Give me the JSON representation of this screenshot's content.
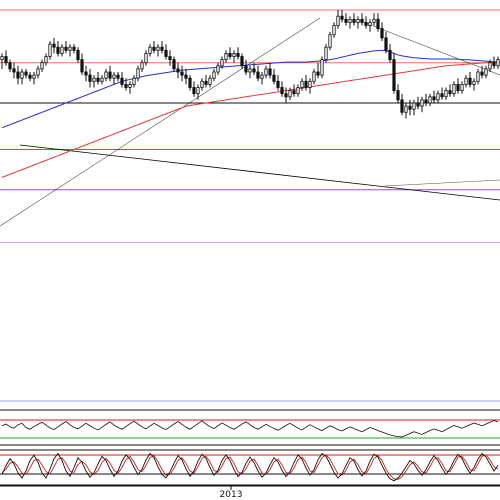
{
  "chart_data": {
    "type": "candlestick",
    "x_axis": {
      "tick_labels": [
        "2013"
      ]
    },
    "colors": {
      "background": "#ffffff",
      "candle_up_body": "#ffffff",
      "candle_down_body": "#111111",
      "candle_wick": "#111111",
      "ma_fast": "#2b2bd6",
      "ma_slow": "#e23b3b",
      "trendline": "#000000",
      "level_pink": "#ff6b6b",
      "level_black": "#111111",
      "level_green": "#2aa02a",
      "level_purple": "#a14ad1",
      "level_violet": "#d8a8e8",
      "level_blue": "#9aa3ff",
      "stoch_k": "#111111",
      "stoch_d": "#d11c1c"
    },
    "horizontal_levels": [
      {
        "name": "top-level",
        "y": 1.0,
        "color_key": "level_pink"
      },
      {
        "name": "mid-level",
        "y": 0.83,
        "color_key": "level_pink"
      },
      {
        "name": "support-level",
        "y": 0.7,
        "color_key": "level_black"
      },
      {
        "name": "green-level",
        "y": 0.55,
        "color_key": "level_green"
      },
      {
        "name": "purple-level",
        "y": 0.42,
        "color_key": "level_purple"
      },
      {
        "name": "violet-level",
        "y": 0.25,
        "color_key": "level_violet"
      }
    ],
    "ohlc": [
      [
        0.84,
        0.86,
        0.81,
        0.85
      ],
      [
        0.85,
        0.87,
        0.82,
        0.83
      ],
      [
        0.83,
        0.84,
        0.8,
        0.81
      ],
      [
        0.81,
        0.83,
        0.78,
        0.8
      ],
      [
        0.8,
        0.82,
        0.76,
        0.78
      ],
      [
        0.78,
        0.81,
        0.76,
        0.8
      ],
      [
        0.8,
        0.81,
        0.78,
        0.79
      ],
      [
        0.79,
        0.8,
        0.77,
        0.78
      ],
      [
        0.78,
        0.8,
        0.76,
        0.79
      ],
      [
        0.79,
        0.82,
        0.78,
        0.81
      ],
      [
        0.81,
        0.84,
        0.8,
        0.83
      ],
      [
        0.83,
        0.86,
        0.82,
        0.85
      ],
      [
        0.85,
        0.9,
        0.84,
        0.89
      ],
      [
        0.89,
        0.91,
        0.86,
        0.88
      ],
      [
        0.88,
        0.9,
        0.85,
        0.86
      ],
      [
        0.86,
        0.89,
        0.85,
        0.88
      ],
      [
        0.88,
        0.9,
        0.86,
        0.87
      ],
      [
        0.87,
        0.89,
        0.85,
        0.88
      ],
      [
        0.88,
        0.89,
        0.86,
        0.87
      ],
      [
        0.87,
        0.88,
        0.83,
        0.84
      ],
      [
        0.84,
        0.86,
        0.79,
        0.8
      ],
      [
        0.8,
        0.82,
        0.77,
        0.79
      ],
      [
        0.79,
        0.81,
        0.75,
        0.77
      ],
      [
        0.77,
        0.79,
        0.75,
        0.78
      ],
      [
        0.78,
        0.8,
        0.76,
        0.77
      ],
      [
        0.77,
        0.79,
        0.76,
        0.78
      ],
      [
        0.78,
        0.81,
        0.77,
        0.8
      ],
      [
        0.8,
        0.82,
        0.77,
        0.78
      ],
      [
        0.78,
        0.8,
        0.76,
        0.79
      ],
      [
        0.79,
        0.8,
        0.77,
        0.78
      ],
      [
        0.78,
        0.8,
        0.75,
        0.76
      ],
      [
        0.76,
        0.78,
        0.74,
        0.75
      ],
      [
        0.75,
        0.77,
        0.73,
        0.76
      ],
      [
        0.76,
        0.79,
        0.75,
        0.78
      ],
      [
        0.78,
        0.82,
        0.77,
        0.81
      ],
      [
        0.81,
        0.84,
        0.8,
        0.83
      ],
      [
        0.83,
        0.87,
        0.82,
        0.86
      ],
      [
        0.86,
        0.89,
        0.85,
        0.88
      ],
      [
        0.88,
        0.9,
        0.86,
        0.87
      ],
      [
        0.87,
        0.89,
        0.85,
        0.88
      ],
      [
        0.88,
        0.9,
        0.86,
        0.87
      ],
      [
        0.87,
        0.89,
        0.84,
        0.85
      ],
      [
        0.85,
        0.87,
        0.82,
        0.84
      ],
      [
        0.84,
        0.85,
        0.8,
        0.81
      ],
      [
        0.81,
        0.83,
        0.78,
        0.8
      ],
      [
        0.8,
        0.82,
        0.77,
        0.79
      ],
      [
        0.79,
        0.81,
        0.76,
        0.78
      ],
      [
        0.78,
        0.79,
        0.74,
        0.75
      ],
      [
        0.75,
        0.77,
        0.72,
        0.73
      ],
      [
        0.73,
        0.76,
        0.71,
        0.75
      ],
      [
        0.75,
        0.78,
        0.74,
        0.77
      ],
      [
        0.77,
        0.79,
        0.75,
        0.76
      ],
      [
        0.76,
        0.79,
        0.75,
        0.78
      ],
      [
        0.78,
        0.81,
        0.77,
        0.8
      ],
      [
        0.8,
        0.83,
        0.79,
        0.82
      ],
      [
        0.82,
        0.85,
        0.81,
        0.84
      ],
      [
        0.84,
        0.87,
        0.83,
        0.86
      ],
      [
        0.86,
        0.88,
        0.84,
        0.85
      ],
      [
        0.85,
        0.87,
        0.83,
        0.86
      ],
      [
        0.86,
        0.88,
        0.84,
        0.85
      ],
      [
        0.85,
        0.86,
        0.81,
        0.82
      ],
      [
        0.82,
        0.84,
        0.79,
        0.8
      ],
      [
        0.8,
        0.82,
        0.78,
        0.81
      ],
      [
        0.81,
        0.83,
        0.79,
        0.8
      ],
      [
        0.8,
        0.82,
        0.77,
        0.78
      ],
      [
        0.78,
        0.8,
        0.76,
        0.79
      ],
      [
        0.79,
        0.82,
        0.78,
        0.81
      ],
      [
        0.81,
        0.83,
        0.78,
        0.79
      ],
      [
        0.79,
        0.81,
        0.76,
        0.77
      ],
      [
        0.77,
        0.79,
        0.74,
        0.75
      ],
      [
        0.75,
        0.77,
        0.72,
        0.73
      ],
      [
        0.73,
        0.75,
        0.7,
        0.72
      ],
      [
        0.72,
        0.75,
        0.71,
        0.74
      ],
      [
        0.74,
        0.76,
        0.72,
        0.73
      ],
      [
        0.73,
        0.76,
        0.72,
        0.75
      ],
      [
        0.75,
        0.78,
        0.74,
        0.77
      ],
      [
        0.77,
        0.79,
        0.74,
        0.75
      ],
      [
        0.75,
        0.78,
        0.73,
        0.77
      ],
      [
        0.77,
        0.81,
        0.76,
        0.8
      ],
      [
        0.8,
        0.83,
        0.78,
        0.79
      ],
      [
        0.79,
        0.85,
        0.78,
        0.84
      ],
      [
        0.84,
        0.89,
        0.83,
        0.88
      ],
      [
        0.88,
        0.93,
        0.87,
        0.92
      ],
      [
        0.92,
        0.96,
        0.91,
        0.95
      ],
      [
        0.95,
        1.0,
        0.94,
        0.98
      ],
      [
        0.98,
        1.0,
        0.96,
        0.97
      ],
      [
        0.97,
        0.99,
        0.95,
        0.96
      ],
      [
        0.96,
        0.98,
        0.94,
        0.97
      ],
      [
        0.97,
        0.99,
        0.95,
        0.96
      ],
      [
        0.96,
        0.98,
        0.94,
        0.97
      ],
      [
        0.97,
        0.99,
        0.95,
        0.96
      ],
      [
        0.96,
        0.98,
        0.94,
        0.95
      ],
      [
        0.95,
        0.97,
        0.93,
        0.96
      ],
      [
        0.96,
        0.99,
        0.95,
        0.97
      ],
      [
        0.97,
        0.99,
        0.93,
        0.94
      ],
      [
        0.94,
        0.96,
        0.9,
        0.91
      ],
      [
        0.91,
        0.93,
        0.86,
        0.87
      ],
      [
        0.87,
        0.89,
        0.83,
        0.84
      ],
      [
        0.84,
        0.86,
        0.73,
        0.74
      ],
      [
        0.74,
        0.76,
        0.7,
        0.71
      ],
      [
        0.71,
        0.73,
        0.66,
        0.67
      ],
      [
        0.67,
        0.7,
        0.65,
        0.69
      ],
      [
        0.69,
        0.71,
        0.66,
        0.68
      ],
      [
        0.68,
        0.71,
        0.66,
        0.7
      ],
      [
        0.7,
        0.72,
        0.68,
        0.69
      ],
      [
        0.69,
        0.72,
        0.67,
        0.71
      ],
      [
        0.71,
        0.73,
        0.69,
        0.7
      ],
      [
        0.7,
        0.73,
        0.69,
        0.72
      ],
      [
        0.72,
        0.74,
        0.7,
        0.71
      ],
      [
        0.71,
        0.74,
        0.7,
        0.73
      ],
      [
        0.73,
        0.75,
        0.71,
        0.72
      ],
      [
        0.72,
        0.75,
        0.71,
        0.74
      ],
      [
        0.74,
        0.76,
        0.72,
        0.73
      ],
      [
        0.73,
        0.77,
        0.72,
        0.76
      ],
      [
        0.76,
        0.78,
        0.73,
        0.74
      ],
      [
        0.74,
        0.77,
        0.73,
        0.76
      ],
      [
        0.76,
        0.79,
        0.75,
        0.78
      ],
      [
        0.78,
        0.8,
        0.75,
        0.76
      ],
      [
        0.76,
        0.78,
        0.74,
        0.77
      ],
      [
        0.77,
        0.81,
        0.76,
        0.8
      ],
      [
        0.8,
        0.82,
        0.78,
        0.79
      ],
      [
        0.79,
        0.82,
        0.78,
        0.81
      ],
      [
        0.81,
        0.84,
        0.8,
        0.83
      ],
      [
        0.83,
        0.85,
        0.81,
        0.82
      ],
      [
        0.82,
        0.85,
        0.81,
        0.84
      ]
    ],
    "ma_fast": [
      0.62,
      0.625,
      0.63,
      0.635,
      0.64,
      0.645,
      0.65,
      0.655,
      0.66,
      0.665,
      0.67,
      0.675,
      0.68,
      0.685,
      0.69,
      0.695,
      0.7,
      0.705,
      0.71,
      0.715,
      0.72,
      0.725,
      0.73,
      0.735,
      0.74,
      0.745,
      0.75,
      0.755,
      0.76,
      0.765,
      0.77,
      0.773,
      0.776,
      0.779,
      0.782,
      0.785,
      0.788,
      0.79,
      0.792,
      0.794,
      0.796,
      0.798,
      0.8,
      0.802,
      0.804,
      0.806,
      0.807,
      0.808,
      0.809,
      0.81,
      0.811,
      0.812,
      0.813,
      0.814,
      0.815,
      0.816,
      0.817,
      0.818,
      0.819,
      0.82,
      0.821,
      0.822,
      0.823,
      0.824,
      0.825,
      0.826,
      0.827,
      0.828,
      0.829,
      0.83,
      0.831,
      0.832,
      0.832,
      0.832,
      0.832,
      0.832,
      0.832,
      0.833,
      0.834,
      0.835,
      0.836,
      0.838,
      0.84,
      0.842,
      0.845,
      0.848,
      0.851,
      0.854,
      0.857,
      0.86,
      0.862,
      0.864,
      0.866,
      0.868,
      0.869,
      0.87,
      0.868,
      0.865,
      0.86,
      0.855,
      0.852,
      0.85,
      0.848,
      0.846,
      0.845,
      0.844,
      0.843,
      0.842,
      0.842,
      0.842,
      0.842,
      0.842,
      0.842,
      0.842,
      0.841,
      0.84,
      0.84,
      0.839,
      0.838,
      0.837,
      0.836,
      0.835,
      0.834,
      0.833,
      0.832
    ],
    "ma_slow": [
      0.46,
      0.465,
      0.47,
      0.475,
      0.48,
      0.485,
      0.49,
      0.495,
      0.5,
      0.505,
      0.51,
      0.515,
      0.52,
      0.525,
      0.53,
      0.535,
      0.54,
      0.545,
      0.55,
      0.555,
      0.56,
      0.565,
      0.57,
      0.575,
      0.58,
      0.585,
      0.59,
      0.595,
      0.6,
      0.605,
      0.61,
      0.615,
      0.62,
      0.625,
      0.63,
      0.635,
      0.64,
      0.645,
      0.65,
      0.655,
      0.66,
      0.665,
      0.67,
      0.675,
      0.68,
      0.685,
      0.69,
      0.692,
      0.694,
      0.696,
      0.698,
      0.7,
      0.702,
      0.704,
      0.706,
      0.708,
      0.71,
      0.712,
      0.714,
      0.716,
      0.718,
      0.72,
      0.722,
      0.724,
      0.726,
      0.728,
      0.73,
      0.732,
      0.734,
      0.736,
      0.738,
      0.74,
      0.742,
      0.744,
      0.746,
      0.748,
      0.75,
      0.752,
      0.754,
      0.756,
      0.758,
      0.76,
      0.762,
      0.764,
      0.766,
      0.768,
      0.77,
      0.772,
      0.774,
      0.776,
      0.778,
      0.78,
      0.782,
      0.784,
      0.786,
      0.788,
      0.79,
      0.792,
      0.794,
      0.796,
      0.798,
      0.8,
      0.802,
      0.804,
      0.806,
      0.808,
      0.81,
      0.812,
      0.814,
      0.816,
      0.818,
      0.82,
      0.821,
      0.822,
      0.823,
      0.824,
      0.825,
      0.826,
      0.827,
      0.828,
      0.829,
      0.83,
      0.831,
      0.832,
      0.833
    ],
    "indicator1": [
      0.55,
      0.6,
      0.52,
      0.48,
      0.58,
      0.62,
      0.5,
      0.45,
      0.53,
      0.59,
      0.65,
      0.57,
      0.49,
      0.44,
      0.52,
      0.6,
      0.67,
      0.58,
      0.5,
      0.46,
      0.54,
      0.62,
      0.55,
      0.48,
      0.43,
      0.51,
      0.59,
      0.66,
      0.57,
      0.5,
      0.45,
      0.53,
      0.61,
      0.68,
      0.6,
      0.52,
      0.46,
      0.54,
      0.62,
      0.56,
      0.49,
      0.44,
      0.52,
      0.6,
      0.67,
      0.59,
      0.51,
      0.45,
      0.53,
      0.61,
      0.69,
      0.6,
      0.52,
      0.47,
      0.55,
      0.63,
      0.57,
      0.5,
      0.45,
      0.52,
      0.6,
      0.66,
      0.58,
      0.5,
      0.45,
      0.52,
      0.59,
      0.53,
      0.47,
      0.42,
      0.49,
      0.56,
      0.62,
      0.55,
      0.48,
      0.43,
      0.51,
      0.58,
      0.52,
      0.46,
      0.41,
      0.48,
      0.55,
      0.5,
      0.44,
      0.4,
      0.46,
      0.52,
      0.47,
      0.42,
      0.38,
      0.44,
      0.5,
      0.46,
      0.41,
      0.37,
      0.33,
      0.29,
      0.26,
      0.24,
      0.23,
      0.28,
      0.33,
      0.38,
      0.34,
      0.3,
      0.36,
      0.41,
      0.46,
      0.42,
      0.38,
      0.44,
      0.5,
      0.56,
      0.52,
      0.48,
      0.53,
      0.58,
      0.63,
      0.59,
      0.55,
      0.6,
      0.65,
      0.7,
      0.66
    ],
    "indicator2_k": [
      0.3,
      0.55,
      0.75,
      0.6,
      0.35,
      0.2,
      0.4,
      0.7,
      0.85,
      0.65,
      0.35,
      0.2,
      0.45,
      0.75,
      0.9,
      0.7,
      0.4,
      0.25,
      0.5,
      0.78,
      0.65,
      0.4,
      0.22,
      0.35,
      0.6,
      0.82,
      0.7,
      0.45,
      0.25,
      0.4,
      0.68,
      0.86,
      0.74,
      0.5,
      0.3,
      0.45,
      0.72,
      0.9,
      0.78,
      0.52,
      0.3,
      0.2,
      0.38,
      0.62,
      0.84,
      0.72,
      0.46,
      0.25,
      0.4,
      0.68,
      0.88,
      0.76,
      0.5,
      0.28,
      0.42,
      0.7,
      0.86,
      0.7,
      0.44,
      0.24,
      0.36,
      0.62,
      0.8,
      0.64,
      0.4,
      0.22,
      0.34,
      0.58,
      0.78,
      0.66,
      0.42,
      0.24,
      0.38,
      0.64,
      0.86,
      0.74,
      0.48,
      0.28,
      0.44,
      0.72,
      0.9,
      0.82,
      0.6,
      0.36,
      0.2,
      0.32,
      0.56,
      0.78,
      0.68,
      0.44,
      0.26,
      0.4,
      0.68,
      0.88,
      0.8,
      0.56,
      0.34,
      0.18,
      0.12,
      0.2,
      0.34,
      0.52,
      0.7,
      0.6,
      0.42,
      0.28,
      0.44,
      0.66,
      0.84,
      0.7,
      0.48,
      0.3,
      0.46,
      0.7,
      0.88,
      0.76,
      0.52,
      0.34,
      0.5,
      0.74,
      0.9,
      0.8,
      0.6,
      0.4,
      0.56
    ],
    "indicator2_d": [
      0.35,
      0.45,
      0.62,
      0.66,
      0.52,
      0.34,
      0.3,
      0.48,
      0.7,
      0.74,
      0.58,
      0.38,
      0.32,
      0.52,
      0.74,
      0.78,
      0.62,
      0.4,
      0.36,
      0.58,
      0.68,
      0.58,
      0.38,
      0.3,
      0.42,
      0.64,
      0.76,
      0.62,
      0.42,
      0.34,
      0.5,
      0.72,
      0.82,
      0.66,
      0.44,
      0.38,
      0.56,
      0.78,
      0.84,
      0.66,
      0.44,
      0.28,
      0.3,
      0.48,
      0.7,
      0.78,
      0.62,
      0.4,
      0.34,
      0.52,
      0.76,
      0.82,
      0.66,
      0.42,
      0.36,
      0.54,
      0.76,
      0.8,
      0.62,
      0.38,
      0.32,
      0.46,
      0.68,
      0.74,
      0.56,
      0.34,
      0.3,
      0.44,
      0.66,
      0.74,
      0.58,
      0.36,
      0.32,
      0.48,
      0.72,
      0.8,
      0.64,
      0.4,
      0.36,
      0.56,
      0.78,
      0.86,
      0.74,
      0.52,
      0.32,
      0.28,
      0.42,
      0.66,
      0.74,
      0.58,
      0.38,
      0.32,
      0.52,
      0.76,
      0.84,
      0.7,
      0.46,
      0.28,
      0.18,
      0.16,
      0.24,
      0.4,
      0.58,
      0.66,
      0.54,
      0.38,
      0.34,
      0.52,
      0.74,
      0.78,
      0.62,
      0.4,
      0.38,
      0.58,
      0.8,
      0.82,
      0.66,
      0.44,
      0.4,
      0.6,
      0.82,
      0.86,
      0.72,
      0.52,
      0.46
    ]
  }
}
